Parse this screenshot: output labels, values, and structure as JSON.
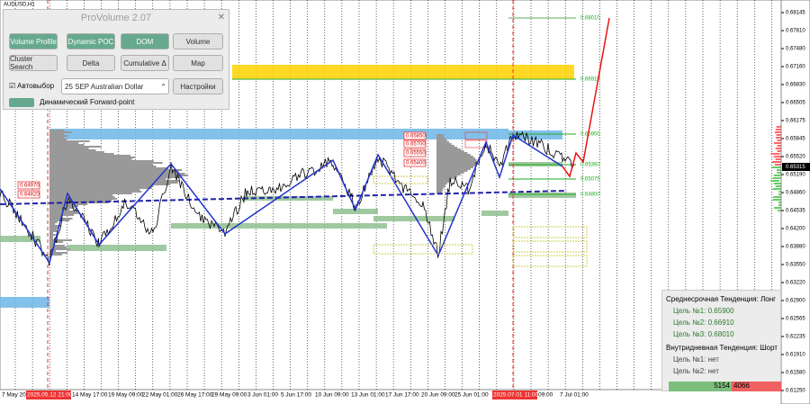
{
  "symbol": "AUDUSD,H1",
  "panel": {
    "title": "ProVolume 2.07",
    "buttons": [
      "Volume Profile",
      "Dynamic POC",
      "DOM",
      "Volume",
      "Cluster Search",
      "Delta",
      "Cumulative Δ",
      "Map"
    ],
    "checkbox": "Автовыбор",
    "select": "25 SEP Australian Dollar",
    "settings": "Настройки",
    "forward": "Динамический Forward-point"
  },
  "price_axis": {
    "ticks": [
      "0.68145",
      "0.67810",
      "0.67480",
      "0.67160",
      "0.66830",
      "0.66505",
      "0.66175",
      "0.65845",
      "0.65520",
      "0.65190",
      "0.64860",
      "0.64535",
      "0.64200",
      "0.63880",
      "0.63550",
      "0.63220",
      "0.62900",
      "0.62565",
      "0.62235",
      "0.61910",
      "0.61580",
      "0.61250"
    ],
    "current": "0.65315"
  },
  "time_axis": [
    "7 May 202",
    "2025.05.12 21:00",
    "14 May 17:00",
    "19 May 09:00",
    "22 May 01:00",
    "26 May 17:00",
    "29 May 09:00",
    "3 Jun 01:00",
    "5 Jun 17:00",
    "10 Jun 09:00",
    "13 Jun 01:00",
    "17 Jun 17:00",
    "20 Jun 09:00",
    "25 Jun 01:00",
    "2025.07.01 11:00",
    "09:00",
    "7 Jul 01:00"
  ],
  "levels": [
    "0.68010",
    "0.66910",
    "0.65900",
    "0.65360",
    "0.65075",
    "0.64800"
  ],
  "boxes": [
    "0.65850",
    "0.65700",
    "0.65550",
    "0.65400",
    "0.64970",
    "0.64820"
  ],
  "info": {
    "mid_trend": "Среднесрочная Тенденция: Лонг",
    "mid_targets": [
      "Цель №1: 0.65900",
      "Цель №2: 0.66910",
      "Цель №3: 0.68010"
    ],
    "intra_trend": "Внутридневная Тенденция: Шорт",
    "intra_targets": [
      "Цель №1: нет",
      "Цель №2: нет"
    ],
    "buy": "5154",
    "sell": "4066"
  }
}
